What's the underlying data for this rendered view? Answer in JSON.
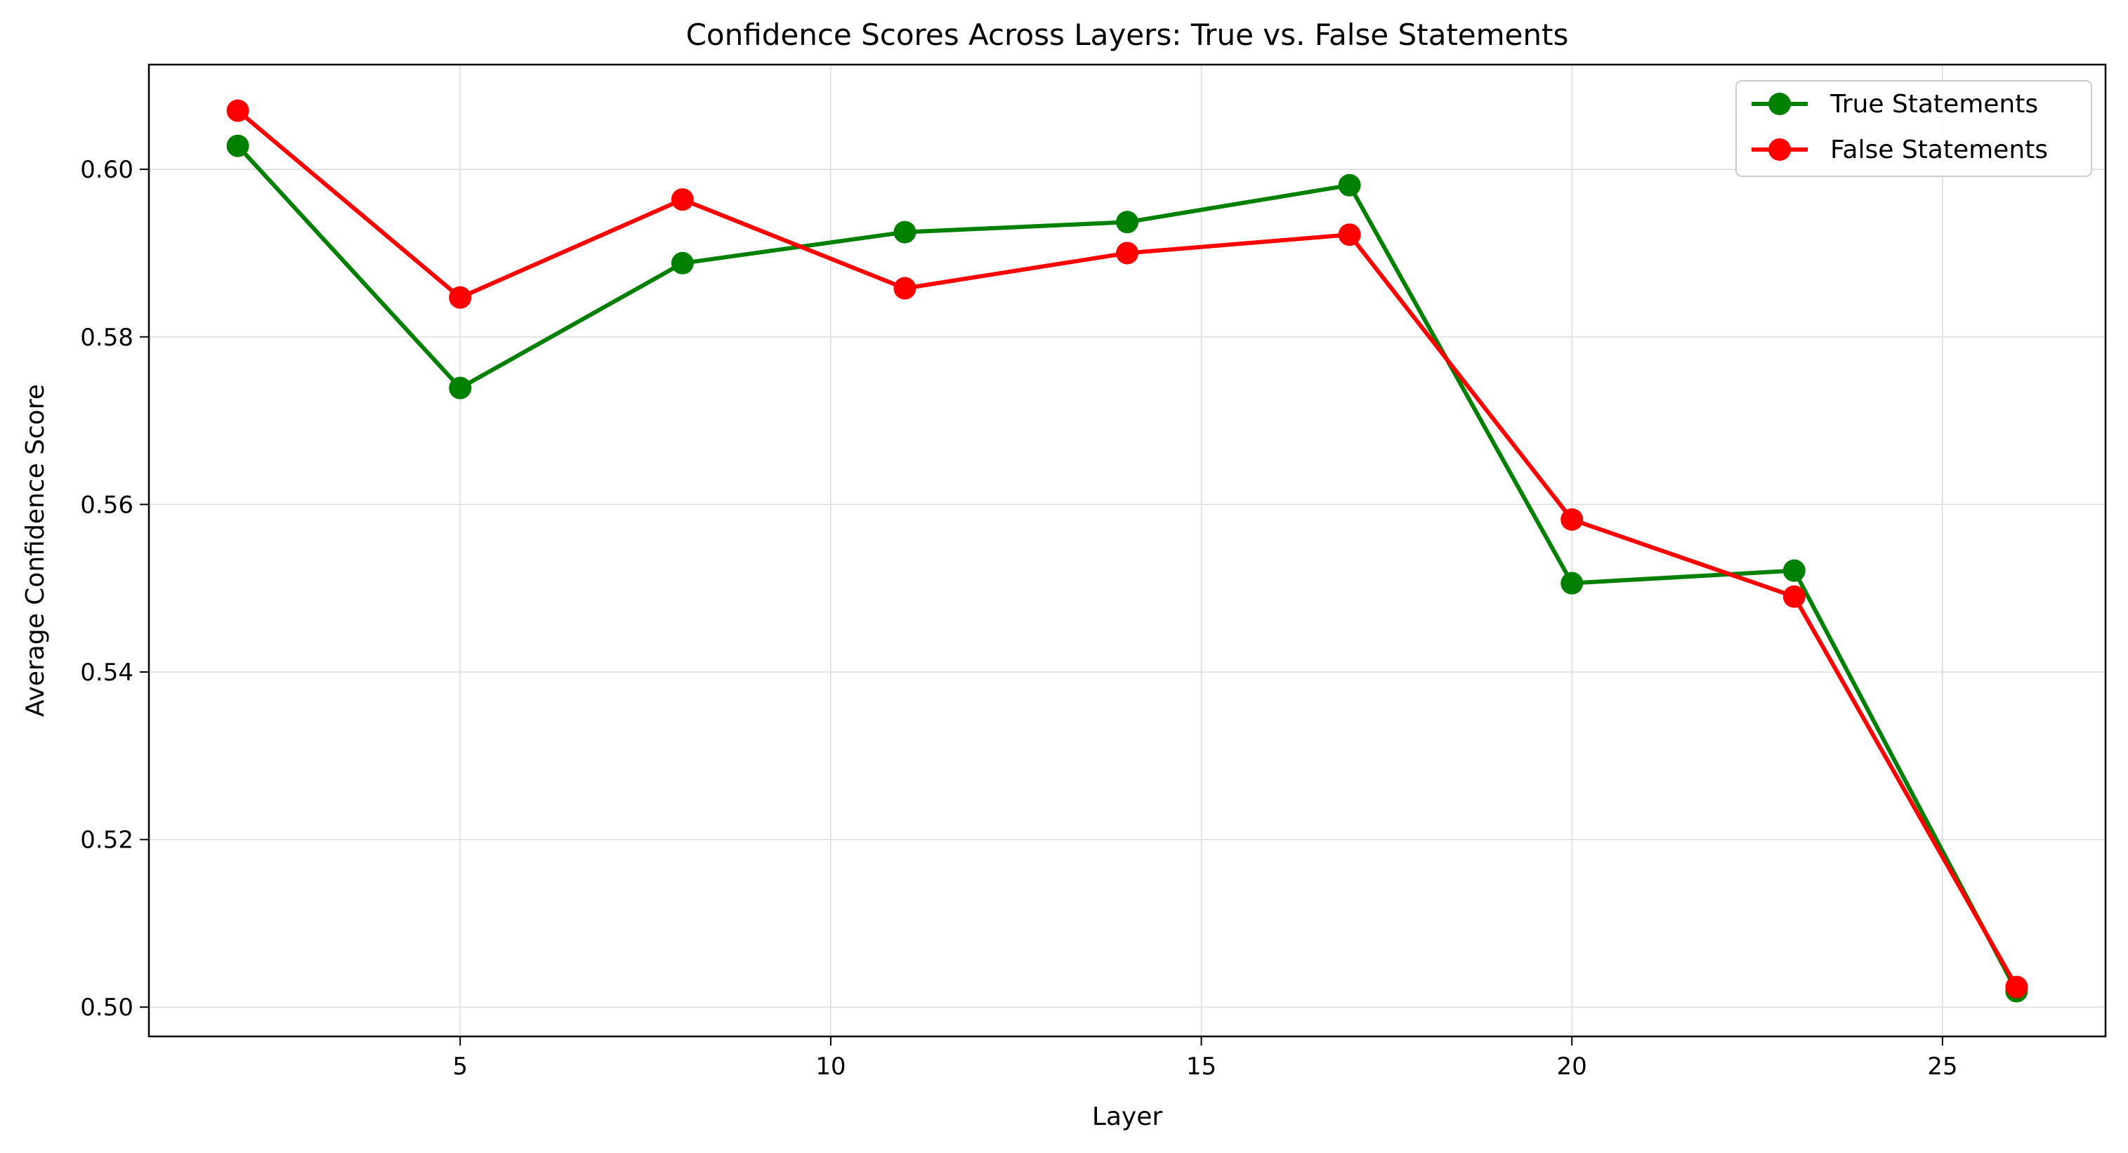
{
  "chart_data": {
    "type": "line",
    "title": "Confidence Scores Across Layers: True vs. False Statements",
    "xlabel": "Layer",
    "ylabel": "Average Confidence Score",
    "xlim": [
      0.8,
      27.2
    ],
    "ylim": [
      0.4965,
      0.6125
    ],
    "xticks": [
      5,
      10,
      15,
      20,
      25
    ],
    "yticks": [
      0.5,
      0.52,
      0.54,
      0.56,
      0.58,
      0.6
    ],
    "ytick_labels": [
      "0.50",
      "0.52",
      "0.54",
      "0.56",
      "0.58",
      "0.60"
    ],
    "grid": true,
    "legend_position": "top-right",
    "x": [
      2,
      5,
      8,
      11,
      14,
      17,
      20,
      23,
      26
    ],
    "series": [
      {
        "name": "True Statements",
        "color": "#008000",
        "marker": "circle",
        "values": [
          0.6028,
          0.5739,
          0.5888,
          0.5925,
          0.5937,
          0.5981,
          0.5506,
          0.5521,
          0.5019
        ]
      },
      {
        "name": "False Statements",
        "color": "#ff0000",
        "marker": "circle",
        "values": [
          0.607,
          0.5847,
          0.5964,
          0.5858,
          0.59,
          0.5922,
          0.5582,
          0.549,
          0.5024
        ]
      }
    ]
  }
}
